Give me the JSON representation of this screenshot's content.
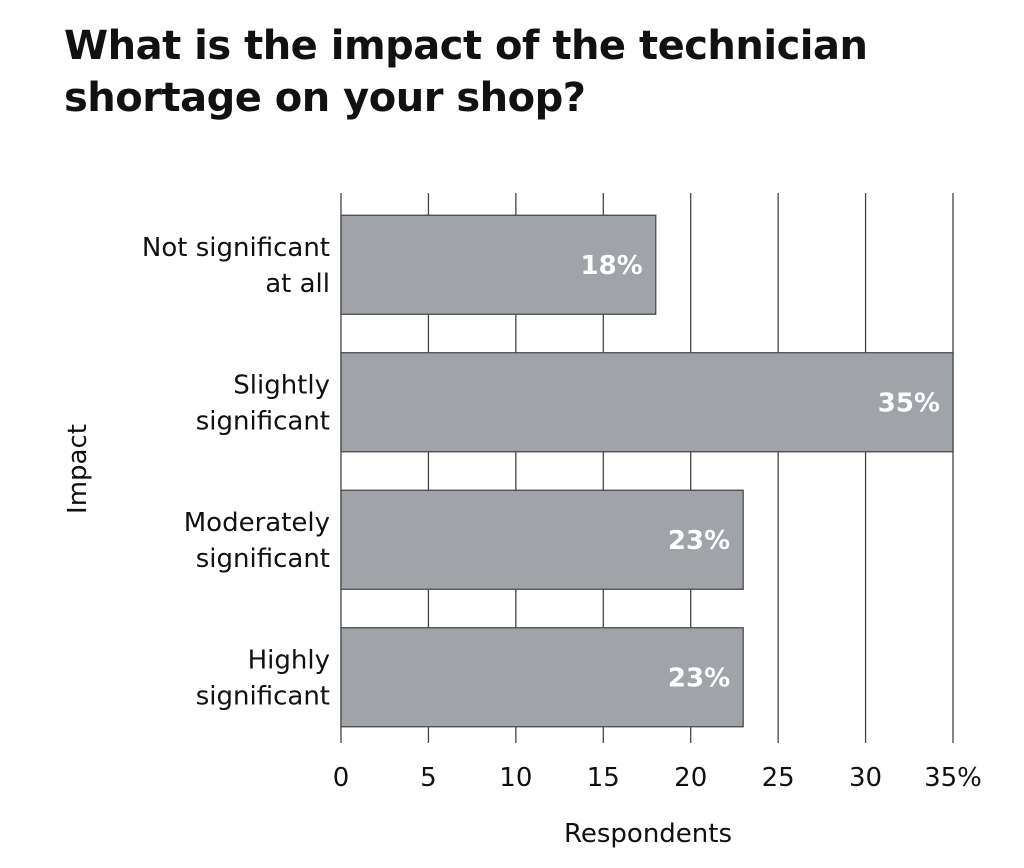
{
  "chart_data": {
    "type": "bar",
    "orientation": "horizontal",
    "title": "What is the impact of the technician shortage on your shop?",
    "xlabel": "Respondents",
    "ylabel": "Impact",
    "categories": [
      [
        "Not significant",
        "at all"
      ],
      [
        "Slightly",
        "significant"
      ],
      [
        "Moderately",
        "significant"
      ],
      [
        "Highly",
        "significant"
      ]
    ],
    "values": [
      18,
      35,
      23,
      23
    ],
    "data_labels": [
      "18%",
      "35%",
      "23%",
      "23%"
    ],
    "xlim": [
      0,
      35
    ],
    "xticks": [
      0,
      5,
      10,
      15,
      20,
      25,
      30,
      35
    ],
    "xtick_labels": [
      "0",
      "5",
      "10",
      "15",
      "20",
      "25",
      "30",
      "35%"
    ],
    "grid": "vertical",
    "legend": "none",
    "colors": {
      "bar": "#a0a3a8",
      "bar_edge": "#4a4a4a",
      "grid": "#444444",
      "data_label": "#ffffff"
    }
  }
}
